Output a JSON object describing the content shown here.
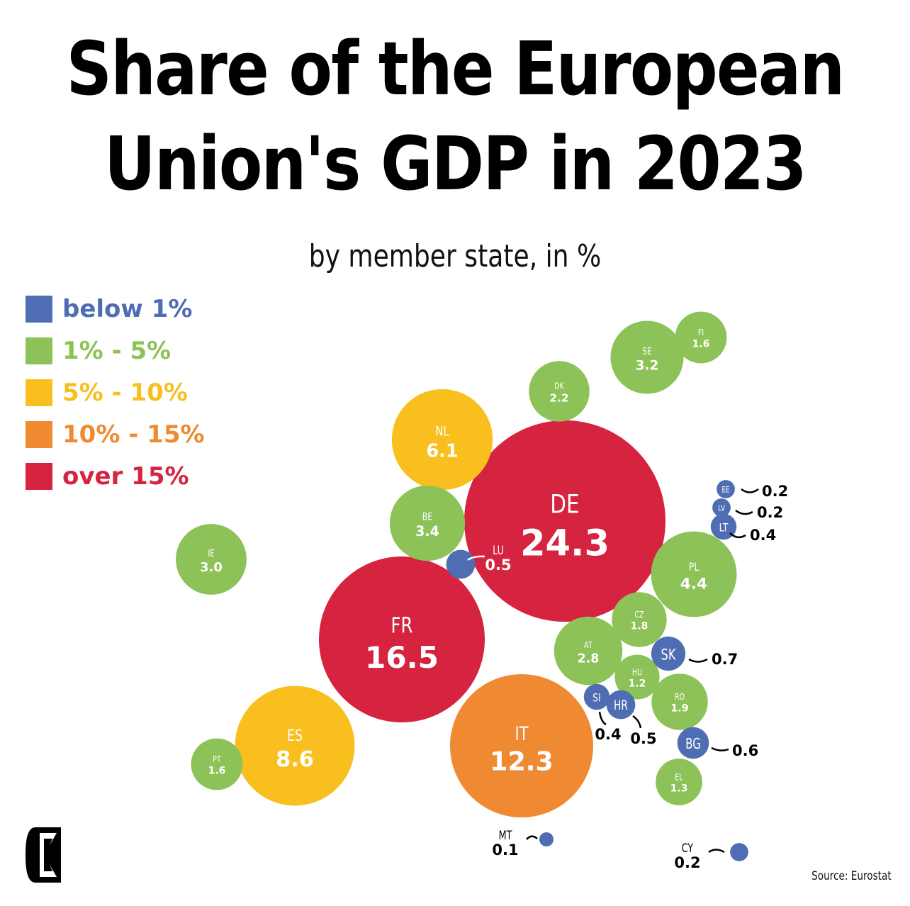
{
  "header": {
    "title_line1": "Share of the European",
    "title_line2": "Union's GDP in 2023",
    "subtitle": "by member state, in %"
  },
  "legend": [
    {
      "label": "below 1%",
      "color": "#4f6db2"
    },
    {
      "label": "1% - 5%",
      "color": "#8cc257"
    },
    {
      "label": "5% - 10%",
      "color": "#f8bf1e"
    },
    {
      "label": "10% - 15%",
      "color": "#ef8a33"
    },
    {
      "label": "over 15%",
      "color": "#d6233f"
    }
  ],
  "footer": {
    "source": "Source: Eurostat",
    "logo": "E-logo"
  },
  "chart_data": {
    "type": "bubble",
    "title": "Share of the European Union's GDP in 2023",
    "subtitle": "by member state, in %",
    "unit": "%",
    "legend_position": "top-left",
    "categories": [
      "below 1%",
      "1% - 5%",
      "5% - 10%",
      "10% - 15%",
      "over 15%"
    ],
    "points": [
      {
        "code": "DE",
        "value": 24.3,
        "category": "over 15%"
      },
      {
        "code": "FR",
        "value": 16.5,
        "category": "over 15%"
      },
      {
        "code": "IT",
        "value": 12.3,
        "category": "10% - 15%"
      },
      {
        "code": "ES",
        "value": 8.6,
        "category": "5% - 10%"
      },
      {
        "code": "NL",
        "value": 6.1,
        "category": "5% - 10%"
      },
      {
        "code": "PL",
        "value": 4.4,
        "category": "1% - 5%"
      },
      {
        "code": "BE",
        "value": 3.4,
        "category": "1% - 5%"
      },
      {
        "code": "SE",
        "value": 3.2,
        "category": "1% - 5%"
      },
      {
        "code": "IE",
        "value": 3.0,
        "category": "1% - 5%"
      },
      {
        "code": "AT",
        "value": 2.8,
        "category": "1% - 5%"
      },
      {
        "code": "DK",
        "value": 2.2,
        "category": "1% - 5%"
      },
      {
        "code": "RO",
        "value": 1.9,
        "category": "1% - 5%"
      },
      {
        "code": "CZ",
        "value": 1.8,
        "category": "1% - 5%"
      },
      {
        "code": "FI",
        "value": 1.6,
        "category": "1% - 5%"
      },
      {
        "code": "PT",
        "value": 1.6,
        "category": "1% - 5%"
      },
      {
        "code": "EL",
        "value": 1.3,
        "category": "1% - 5%"
      },
      {
        "code": "HU",
        "value": 1.2,
        "category": "1% - 5%"
      },
      {
        "code": "SK",
        "value": 0.7,
        "category": "below 1%"
      },
      {
        "code": "BG",
        "value": 0.6,
        "category": "below 1%"
      },
      {
        "code": "LU",
        "value": 0.5,
        "category": "below 1%"
      },
      {
        "code": "HR",
        "value": 0.5,
        "category": "below 1%"
      },
      {
        "code": "LT",
        "value": 0.4,
        "category": "below 1%"
      },
      {
        "code": "SI",
        "value": 0.4,
        "category": "below 1%"
      },
      {
        "code": "EE",
        "value": 0.2,
        "category": "below 1%"
      },
      {
        "code": "LV",
        "value": 0.2,
        "category": "below 1%"
      },
      {
        "code": "CY",
        "value": 0.2,
        "category": "below 1%"
      },
      {
        "code": "MT",
        "value": 0.1,
        "category": "below 1%"
      }
    ]
  }
}
